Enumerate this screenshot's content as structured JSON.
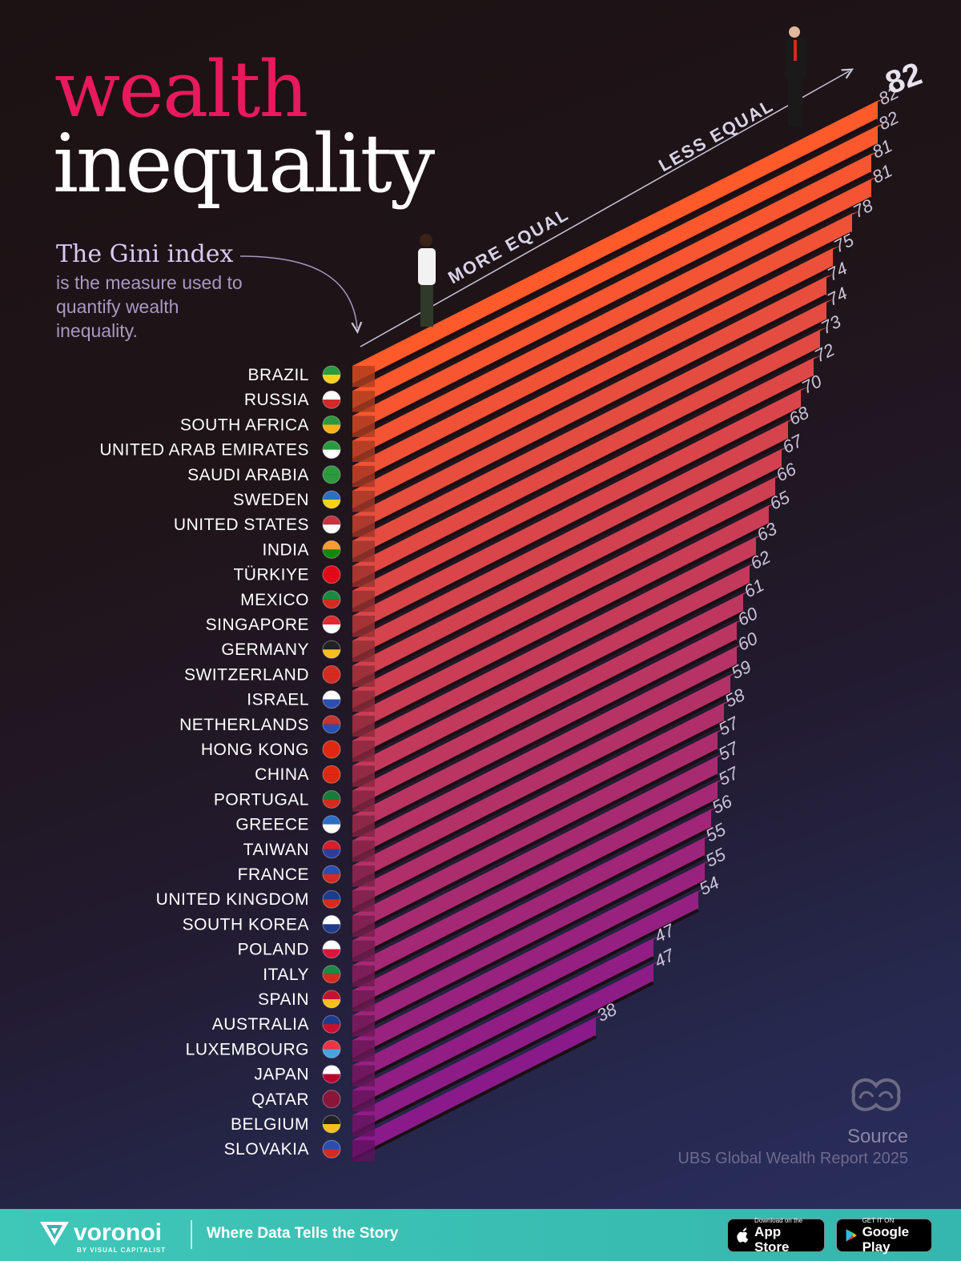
{
  "title": {
    "line1": "wealth",
    "line2": "inequality"
  },
  "intro": {
    "heading": "The Gini index",
    "text": "is the measure used to quantify wealth inequality."
  },
  "axis": {
    "low_label": "MORE EQUAL",
    "high_label": "LESS EQUAL"
  },
  "source": {
    "label": "Source",
    "value": "UBS Global Wealth Report 2025"
  },
  "footer": {
    "brand": "voronoi",
    "brand_sub": "BY VISUAL CAPITALIST",
    "tagline": "Where Data Tells the Story",
    "app_store_small": "Download on the",
    "app_store_big": "App Store",
    "google_small": "GET IT ON",
    "google_big": "Google Play"
  },
  "colors": {
    "bar_top": "#ff5a2a",
    "bar_bottom": "#8a1a8a",
    "accent_title": "#e8195e",
    "footer": "#3fc7b8"
  },
  "chart_data": {
    "type": "bar",
    "orientation": "horizontal",
    "title": "wealth inequality",
    "categories": [
      "BRAZIL",
      "RUSSIA",
      "SOUTH AFRICA",
      "UNITED ARAB EMIRATES",
      "SAUDI ARABIA",
      "SWEDEN",
      "UNITED STATES",
      "INDIA",
      "TÜRKIYE",
      "MEXICO",
      "SINGAPORE",
      "GERMANY",
      "SWITZERLAND",
      "ISRAEL",
      "NETHERLANDS",
      "HONG KONG",
      "CHINA",
      "PORTUGAL",
      "GREECE",
      "TAIWAN",
      "FRANCE",
      "UNITED KINGDOM",
      "SOUTH KOREA",
      "POLAND",
      "ITALY",
      "SPAIN",
      "AUSTRALIA",
      "LUXEMBOURG",
      "JAPAN",
      "QATAR",
      "BELGIUM",
      "SLOVAKIA"
    ],
    "values": [
      82,
      82,
      81,
      81,
      78,
      75,
      74,
      74,
      73,
      72,
      70,
      68,
      67,
      66,
      65,
      63,
      62,
      61,
      60,
      60,
      59,
      58,
      57,
      57,
      57,
      56,
      55,
      55,
      54,
      47,
      47,
      38
    ],
    "flags": [
      [
        "#2b9a3e",
        "#f6d21c"
      ],
      [
        "#ffffff",
        "#d62828"
      ],
      [
        "#2b9a3e",
        "#f6b21c"
      ],
      [
        "#2b9a3e",
        "#ffffff"
      ],
      [
        "#2b9a3e",
        "#2b9a3e"
      ],
      [
        "#2c6fbf",
        "#f6d21c"
      ],
      [
        "#c8323c",
        "#ffffff"
      ],
      [
        "#ff9933",
        "#138808"
      ],
      [
        "#e30a17",
        "#e30a17"
      ],
      [
        "#1a8a43",
        "#d52b1e"
      ],
      [
        "#e0292f",
        "#ffffff"
      ],
      [
        "#222222",
        "#f6c01c"
      ],
      [
        "#d52b1e",
        "#d52b1e"
      ],
      [
        "#ffffff",
        "#2b4fb0"
      ],
      [
        "#c8322c",
        "#2b4fb0"
      ],
      [
        "#de2910",
        "#de2910"
      ],
      [
        "#de2910",
        "#de2910"
      ],
      [
        "#1a7a3a",
        "#d52b1e"
      ],
      [
        "#2b6fc4",
        "#ffffff"
      ],
      [
        "#d81e2c",
        "#2a3f9c"
      ],
      [
        "#2b4fb0",
        "#d52b1e"
      ],
      [
        "#1f3c8c",
        "#d52b1e"
      ],
      [
        "#ffffff",
        "#1f3c8c"
      ],
      [
        "#ffffff",
        "#dc143c"
      ],
      [
        "#1a8a43",
        "#d52b1e"
      ],
      [
        "#c8102e",
        "#f6c01c"
      ],
      [
        "#1f3c8c",
        "#c8102e"
      ],
      [
        "#ef3340",
        "#4aa3df"
      ],
      [
        "#ffffff",
        "#bc002d"
      ],
      [
        "#8a1538",
        "#8a1538"
      ],
      [
        "#222222",
        "#f6c01c"
      ],
      [
        "#2b4fb0",
        "#d52b1e"
      ]
    ],
    "xlabel": "",
    "ylabel": "",
    "annotations": [
      "MORE EQUAL",
      "LESS EQUAL"
    ]
  }
}
